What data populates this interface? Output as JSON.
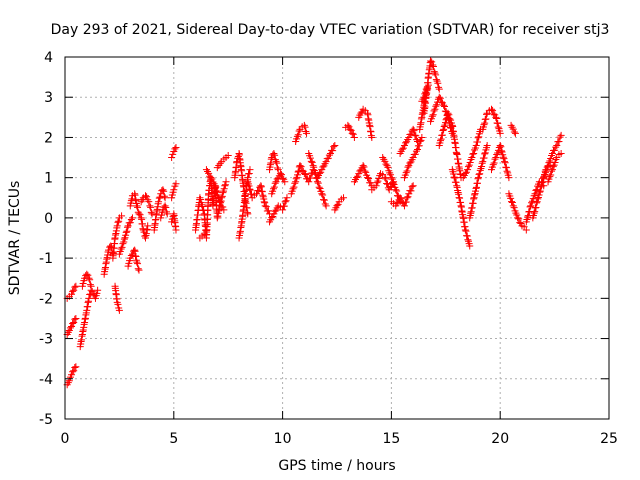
{
  "chart_data": {
    "type": "scatter",
    "title": "Day 293 of 2021, Sidereal Day-to-day VTEC variation (SDTVAR) for receiver stj3",
    "xlabel": "GPS time / hours",
    "ylabel": "SDTVAR / TECUs",
    "xlim": [
      0,
      25
    ],
    "ylim": [
      -5,
      4
    ],
    "xticks": [
      "0",
      "5",
      "10",
      "15",
      "20",
      "25"
    ],
    "yticks": [
      "-5",
      "-4",
      "-3",
      "-2",
      "-1",
      "0",
      "1",
      "2",
      "3",
      "4"
    ],
    "grid": true,
    "marker": "+",
    "colors": {
      "series": "#ff0000",
      "grid": "#b0b0b0",
      "axis": "#000000"
    },
    "series": [
      {
        "name": "SDTVAR",
        "segments": [
          {
            "x": [
              0.1,
              0.2,
              0.3,
              0.4,
              0.5
            ],
            "y": [
              -2.0,
              -1.95,
              -1.9,
              -1.8,
              -1.7
            ]
          },
          {
            "x": [
              0.1,
              0.2,
              0.3,
              0.4,
              0.5
            ],
            "y": [
              -2.9,
              -2.8,
              -2.7,
              -2.6,
              -2.5
            ]
          },
          {
            "x": [
              0.1,
              0.2,
              0.3,
              0.4,
              0.5
            ],
            "y": [
              -4.15,
              -4.05,
              -3.9,
              -3.8,
              -3.7
            ]
          },
          {
            "x": [
              0.7,
              0.8,
              0.9,
              1.0,
              1.1,
              1.2,
              1.3,
              1.4,
              1.5
            ],
            "y": [
              -3.2,
              -2.9,
              -2.6,
              -2.3,
              -2.0,
              -1.8,
              -1.9,
              -2.0,
              -1.8
            ]
          },
          {
            "x": [
              0.8,
              0.9,
              1.0,
              1.1,
              1.2
            ],
            "y": [
              -1.7,
              -1.5,
              -1.4,
              -1.5,
              -1.7
            ]
          },
          {
            "x": [
              1.8,
              1.9,
              2.0,
              2.1,
              2.2
            ],
            "y": [
              -1.4,
              -1.1,
              -0.8,
              -0.7,
              -0.9
            ]
          },
          {
            "x": [
              2.2,
              2.3,
              2.4,
              2.5,
              2.6
            ],
            "y": [
              -1.0,
              -0.5,
              -0.2,
              0.0,
              0.05
            ]
          },
          {
            "x": [
              2.3,
              2.4,
              2.5
            ],
            "y": [
              -1.7,
              -2.1,
              -2.3
            ]
          },
          {
            "x": [
              2.5,
              2.7,
              2.9,
              3.1
            ],
            "y": [
              -0.9,
              -0.6,
              -0.2,
              0.0
            ]
          },
          {
            "x": [
              2.9,
              3.0,
              3.1,
              3.2,
              3.3,
              3.4
            ],
            "y": [
              -1.2,
              -1.0,
              -0.9,
              -0.8,
              -1.1,
              -1.3
            ]
          },
          {
            "x": [
              3.0,
              3.1,
              3.2,
              3.3,
              3.4,
              3.5,
              3.6,
              3.7,
              3.8
            ],
            "y": [
              0.3,
              0.55,
              0.6,
              0.3,
              0.1,
              0.0,
              -0.3,
              -0.5,
              -0.2
            ]
          },
          {
            "x": [
              3.5,
              3.6,
              3.7,
              3.8,
              3.9,
              4.0
            ],
            "y": [
              0.4,
              0.5,
              0.55,
              0.45,
              0.3,
              0.1
            ]
          },
          {
            "x": [
              4.1,
              4.2,
              4.3,
              4.4,
              4.5,
              4.6
            ],
            "y": [
              -0.3,
              0.1,
              0.4,
              0.6,
              0.7,
              0.5
            ]
          },
          {
            "x": [
              4.4,
              4.5,
              4.6,
              4.7
            ],
            "y": [
              0.0,
              0.2,
              0.3,
              0.1
            ]
          },
          {
            "x": [
              4.9,
              5.0,
              5.1
            ],
            "y": [
              -0.1,
              0.1,
              -0.3
            ]
          },
          {
            "x": [
              4.9,
              5.0,
              5.1
            ],
            "y": [
              0.5,
              0.7,
              0.85
            ]
          },
          {
            "x": [
              4.9,
              5.0,
              5.1
            ],
            "y": [
              1.5,
              1.65,
              1.75
            ]
          },
          {
            "x": [
              6.0,
              6.2,
              6.4,
              6.5,
              6.6,
              6.7,
              6.8,
              6.9,
              7.0,
              7.2,
              7.4
            ],
            "y": [
              -0.3,
              0.5,
              0.1,
              -0.5,
              0.6,
              1.0,
              0.3,
              0.8,
              0.0,
              0.5,
              0.9
            ]
          },
          {
            "x": [
              6.2,
              6.3,
              6.4,
              6.5
            ],
            "y": [
              -0.5,
              -0.45,
              -0.4,
              -0.35
            ]
          },
          {
            "x": [
              6.5,
              6.7,
              6.9,
              7.1,
              7.3
            ],
            "y": [
              1.2,
              1.0,
              0.8,
              0.4,
              0.2
            ]
          },
          {
            "x": [
              7.0,
              7.2,
              7.4,
              7.5
            ],
            "y": [
              1.25,
              1.4,
              1.5,
              1.55
            ]
          },
          {
            "x": [
              7.8,
              7.9,
              8.0,
              8.1,
              8.2,
              8.3,
              8.4
            ],
            "y": [
              1.0,
              1.4,
              1.6,
              1.2,
              0.8,
              0.4,
              0.1
            ]
          },
          {
            "x": [
              8.0,
              8.1,
              8.2,
              8.3,
              8.4,
              8.5
            ],
            "y": [
              -0.5,
              -0.2,
              0.2,
              0.6,
              1.0,
              1.2
            ]
          },
          {
            "x": [
              8.4,
              8.6,
              8.8,
              9.0,
              9.2,
              9.4
            ],
            "y": [
              0.9,
              0.5,
              0.6,
              0.8,
              0.3,
              0.1
            ]
          },
          {
            "x": [
              9.4,
              9.5,
              9.6,
              9.7,
              9.8
            ],
            "y": [
              1.2,
              1.5,
              1.6,
              1.4,
              1.2
            ]
          },
          {
            "x": [
              9.4,
              9.6,
              9.8,
              10.0,
              10.2
            ],
            "y": [
              -0.1,
              0.1,
              0.3,
              0.2,
              0.5
            ]
          },
          {
            "x": [
              9.5,
              9.7,
              9.9,
              10.1
            ],
            "y": [
              0.6,
              0.9,
              1.1,
              0.9
            ]
          },
          {
            "x": [
              10.4,
              10.6,
              10.8,
              11.0,
              11.2,
              11.4
            ],
            "y": [
              0.6,
              0.9,
              1.3,
              1.1,
              0.9,
              1.2
            ]
          },
          {
            "x": [
              10.6,
              10.8,
              11.0,
              11.1
            ],
            "y": [
              1.9,
              2.2,
              2.3,
              2.1
            ]
          },
          {
            "x": [
              11.2,
              11.4,
              11.6,
              11.8,
              12.0
            ],
            "y": [
              1.6,
              1.3,
              0.9,
              0.6,
              0.3
            ]
          },
          {
            "x": [
              11.6,
              11.8,
              12.0,
              12.2,
              12.4
            ],
            "y": [
              1.0,
              1.2,
              1.4,
              1.6,
              1.8
            ]
          },
          {
            "x": [
              12.4,
              12.6,
              12.8
            ],
            "y": [
              0.2,
              0.4,
              0.5
            ]
          },
          {
            "x": [
              12.9,
              13.0,
              13.1,
              13.2,
              13.3
            ],
            "y": [
              2.25,
              2.3,
              2.2,
              2.1,
              2.0
            ]
          },
          {
            "x": [
              13.3,
              13.5,
              13.7,
              13.9,
              14.1
            ],
            "y": [
              0.9,
              1.1,
              1.3,
              1.0,
              0.8
            ]
          },
          {
            "x": [
              13.5,
              13.7,
              13.9,
              14.0,
              14.1
            ],
            "y": [
              2.5,
              2.7,
              2.6,
              2.3,
              2.0
            ]
          },
          {
            "x": [
              14.1,
              14.3,
              14.5,
              14.7,
              14.9,
              15.1
            ],
            "y": [
              0.7,
              0.8,
              1.1,
              1.0,
              0.7,
              0.9
            ]
          },
          {
            "x": [
              14.6,
              14.8,
              15.0,
              15.2,
              15.4
            ],
            "y": [
              1.5,
              1.3,
              1.0,
              0.7,
              0.4
            ]
          },
          {
            "x": [
              15.0,
              15.2,
              15.4,
              15.6,
              15.8,
              16.0
            ],
            "y": [
              0.4,
              0.3,
              0.5,
              0.3,
              0.6,
              0.8
            ]
          },
          {
            "x": [
              15.4,
              15.6,
              15.8,
              16.0,
              16.2
            ],
            "y": [
              1.6,
              1.8,
              2.0,
              2.2,
              1.9
            ]
          },
          {
            "x": [
              15.6,
              15.8,
              16.0,
              16.2,
              16.4
            ],
            "y": [
              1.0,
              1.3,
              1.5,
              1.7,
              2.0
            ]
          },
          {
            "x": [
              16.3,
              16.4,
              16.5,
              16.6,
              16.7
            ],
            "y": [
              2.2,
              2.5,
              2.8,
              3.1,
              3.3
            ]
          },
          {
            "x": [
              16.4,
              16.5,
              16.6
            ],
            "y": [
              2.9,
              3.0,
              3.2
            ]
          },
          {
            "x": [
              16.5,
              16.6,
              16.7,
              16.8,
              16.9,
              17.0,
              17.1,
              17.2
            ],
            "y": [
              2.6,
              3.0,
              3.5,
              3.9,
              3.8,
              3.6,
              3.4,
              3.2
            ]
          },
          {
            "x": [
              16.8,
              17.0,
              17.2,
              17.4,
              17.6,
              17.8
            ],
            "y": [
              2.4,
              2.7,
              3.0,
              2.8,
              2.5,
              2.1
            ]
          },
          {
            "x": [
              17.2,
              17.4,
              17.6,
              17.8,
              18.0,
              18.2
            ],
            "y": [
              1.8,
              2.2,
              2.6,
              2.3,
              1.6,
              1.0
            ]
          },
          {
            "x": [
              17.8,
              18.0,
              18.2,
              18.4,
              18.6
            ],
            "y": [
              1.2,
              0.8,
              0.3,
              -0.3,
              -0.7
            ]
          },
          {
            "x": [
              18.3,
              18.5,
              18.7,
              18.9,
              19.1
            ],
            "y": [
              1.0,
              1.2,
              1.5,
              1.8,
              2.2
            ]
          },
          {
            "x": [
              18.6,
              18.8,
              19.0,
              19.2,
              19.4
            ],
            "y": [
              0.0,
              0.5,
              1.0,
              1.4,
              1.8
            ]
          },
          {
            "x": [
              19.2,
              19.4,
              19.6,
              19.8,
              20.0
            ],
            "y": [
              2.2,
              2.6,
              2.7,
              2.5,
              2.1
            ]
          },
          {
            "x": [
              19.6,
              19.8,
              20.0,
              20.2,
              20.4
            ],
            "y": [
              1.2,
              1.5,
              1.8,
              1.4,
              1.0
            ]
          },
          {
            "x": [
              20.4,
              20.6,
              20.8,
              21.0,
              21.2
            ],
            "y": [
              0.6,
              0.3,
              0.0,
              -0.2,
              -0.3
            ]
          },
          {
            "x": [
              20.5,
              20.7
            ],
            "y": [
              2.3,
              2.1
            ]
          },
          {
            "x": [
              21.2,
              21.4,
              21.6,
              21.8,
              22.0
            ],
            "y": [
              -0.1,
              0.3,
              0.6,
              0.9,
              0.8
            ]
          },
          {
            "x": [
              21.5,
              21.7,
              21.9,
              22.1,
              22.3
            ],
            "y": [
              0.0,
              0.4,
              0.8,
              1.2,
              1.3
            ]
          },
          {
            "x": [
              22.0,
              22.2,
              22.4,
              22.6,
              22.8
            ],
            "y": [
              1.0,
              1.3,
              1.6,
              1.8,
              2.05
            ]
          },
          {
            "x": [
              22.2,
              22.4,
              22.6,
              22.8
            ],
            "y": [
              0.9,
              1.2,
              1.5,
              1.6
            ]
          }
        ]
      }
    ]
  }
}
